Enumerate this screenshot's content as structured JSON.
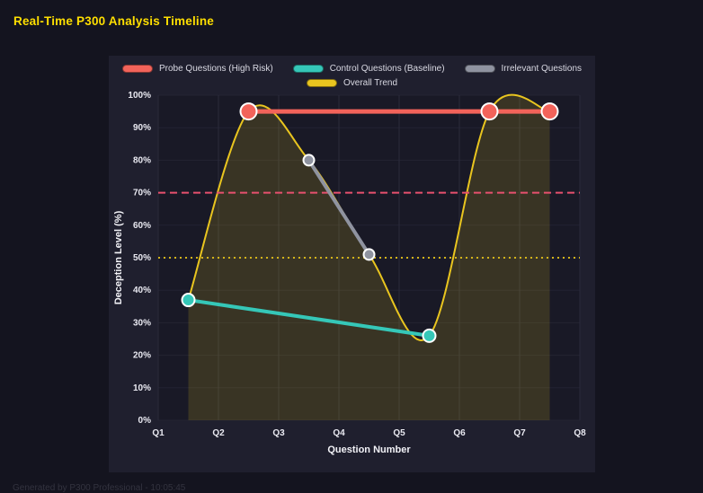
{
  "page": {
    "title": "Real-Time P300 Analysis Timeline",
    "footer": "Generated by P300 Professional - 10:05:45"
  },
  "legend": {
    "items": [
      {
        "label": "Probe Questions (High Risk)",
        "color": "#f2635a"
      },
      {
        "label": "Control Questions (Baseline)",
        "color": "#35c7b8"
      },
      {
        "label": "Irrelevant Questions",
        "color": "#8f93a0"
      },
      {
        "label": "Overall Trend",
        "color": "#e9c51f"
      }
    ]
  },
  "chart_data": {
    "type": "line",
    "title": "Real-Time P300 Analysis Timeline",
    "xlabel": "Question Number",
    "ylabel": "Deception Level (%)",
    "x_ticks": [
      "Q1",
      "Q2",
      "Q3",
      "Q4",
      "Q5",
      "Q6",
      "Q7",
      "Q8"
    ],
    "y_ticks": [
      "0%",
      "10%",
      "20%",
      "30%",
      "40%",
      "50%",
      "60%",
      "70%",
      "80%",
      "90%",
      "100%"
    ],
    "xlim": [
      1,
      8
    ],
    "ylim": [
      0,
      100
    ],
    "grid": true,
    "legend_position": "top",
    "series": [
      {
        "id": "probe",
        "name": "Probe Questions (High Risk)",
        "color": "#f2635a",
        "x": [
          2.5,
          6.5,
          7.5
        ],
        "y": [
          95,
          95,
          95
        ],
        "width": 5,
        "marker_r": 9,
        "smooth": false
      },
      {
        "id": "control",
        "name": "Control Questions (Baseline)",
        "color": "#35c7b8",
        "x": [
          1.5,
          5.5
        ],
        "y": [
          37,
          26
        ],
        "width": 4,
        "marker_r": 7,
        "smooth": false
      },
      {
        "id": "irrelevant",
        "name": "Irrelevant Questions",
        "color": "#8f93a0",
        "x": [
          3.5,
          4.5
        ],
        "y": [
          80,
          51
        ],
        "width": 4,
        "marker_r": 6,
        "smooth": false
      },
      {
        "id": "trend",
        "name": "Overall Trend",
        "color": "#e9c51f",
        "x": [
          1.5,
          2.5,
          3.5,
          4.5,
          5.5,
          6.5,
          7.5
        ],
        "y": [
          37,
          95,
          80,
          51,
          26,
          95,
          95
        ],
        "width": 2,
        "marker_r": 0,
        "smooth": true,
        "fill": "rgba(233,197,31,0.16)"
      }
    ],
    "thresholds": [
      {
        "value": 70,
        "color": "#e8506e",
        "dash": "8 5"
      },
      {
        "value": 50,
        "color": "#d3b41a",
        "dash": "2 4"
      }
    ]
  }
}
